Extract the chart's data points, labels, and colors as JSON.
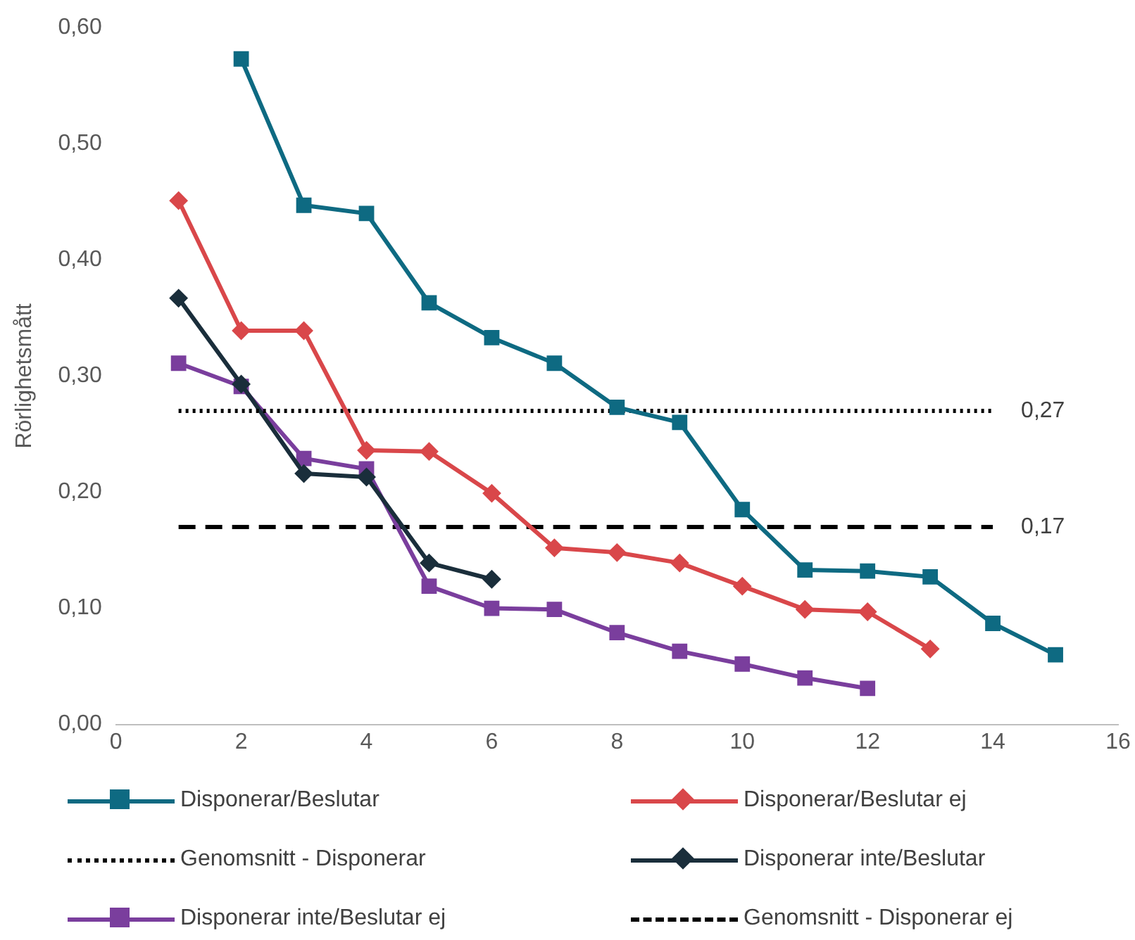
{
  "chart_data": {
    "type": "line",
    "ylabel": "Rörlighetsmått",
    "xlim": [
      0,
      16
    ],
    "xticks": [
      0,
      2,
      4,
      6,
      8,
      10,
      12,
      14,
      16
    ],
    "ylim": [
      0,
      0.6
    ],
    "yticks": [
      {
        "value": 0,
        "label": "0,00"
      },
      {
        "value": 0.1,
        "label": "0,10"
      },
      {
        "value": 0.2,
        "label": "0,20"
      },
      {
        "value": 0.3,
        "label": "0,30"
      },
      {
        "value": 0.4,
        "label": "0,40"
      },
      {
        "value": 0.5,
        "label": "0,50"
      },
      {
        "value": 0.6,
        "label": "0,60"
      }
    ],
    "grid": false,
    "legend": "bottom",
    "series": [
      {
        "name": "Disponerar/Beslutar",
        "color": "#0e6a82",
        "marker": "square",
        "line_style": "solid",
        "x": [
          2,
          3,
          4,
          5,
          6,
          7,
          8,
          9,
          10,
          11,
          12,
          13,
          14,
          15
        ],
        "values": [
          0.573,
          0.447,
          0.44,
          0.363,
          0.333,
          0.311,
          0.273,
          0.26,
          0.185,
          0.133,
          0.132,
          0.127,
          0.087,
          0.06
        ]
      },
      {
        "name": "Disponerar/Beslutar ej",
        "color": "#d9474a",
        "marker": "diamond",
        "line_style": "solid",
        "x": [
          1,
          2,
          3,
          4,
          5,
          6,
          7,
          8,
          9,
          10,
          11,
          12,
          13
        ],
        "values": [
          0.451,
          0.339,
          0.339,
          0.236,
          0.235,
          0.199,
          0.152,
          0.148,
          0.139,
          0.119,
          0.099,
          0.097,
          0.065
        ]
      },
      {
        "name": "Genomsnitt - Disponerar",
        "color": "#000000",
        "marker": "none",
        "line_style": "dotted",
        "x": [
          1,
          14
        ],
        "values": [
          0.27,
          0.27
        ],
        "value_labels": [
          null,
          "0,27"
        ]
      },
      {
        "name": "Disponerar inte/Beslutar",
        "color": "#1a2e3b",
        "marker": "diamond",
        "line_style": "solid",
        "x": [
          1,
          2,
          3,
          4,
          5,
          6
        ],
        "values": [
          0.367,
          0.293,
          0.216,
          0.213,
          0.139,
          0.125
        ]
      },
      {
        "name": "Disponerar inte/Beslutar ej",
        "color": "#7a3e9d",
        "marker": "square",
        "line_style": "solid",
        "x": [
          1,
          2,
          3,
          4,
          5,
          6,
          7,
          8,
          9,
          10,
          11,
          12
        ],
        "values": [
          0.311,
          0.291,
          0.229,
          0.22,
          0.119,
          0.1,
          0.099,
          0.079,
          0.063,
          0.052,
          0.04,
          0.031
        ]
      },
      {
        "name": "Genomsnitt - Disponerar ej",
        "color": "#000000",
        "marker": "none",
        "line_style": "dashed",
        "x": [
          1,
          14
        ],
        "values": [
          0.17,
          0.17
        ],
        "value_labels": [
          null,
          "0,17"
        ]
      }
    ]
  }
}
